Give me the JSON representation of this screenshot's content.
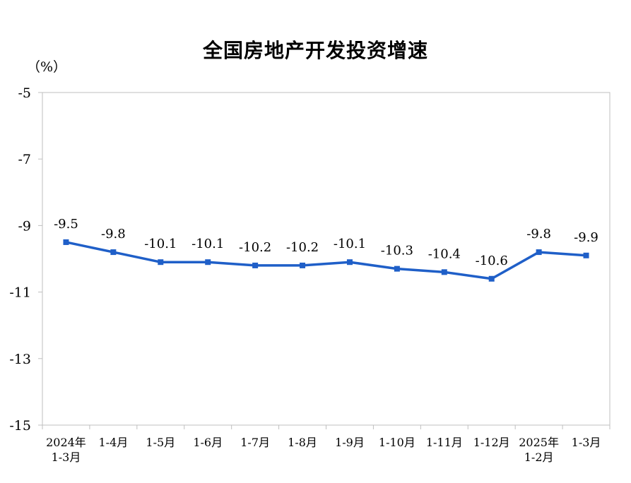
{
  "chart_data": {
    "type": "line",
    "title": "全国房地产开发投资增速",
    "unit_label": "（%）",
    "ylim": [
      -15,
      -5
    ],
    "yticks": [
      -5,
      -7,
      -9,
      -11,
      -13,
      -15
    ],
    "grid": false,
    "categories": [
      [
        "2024年",
        "1-3月"
      ],
      [
        "1-4月"
      ],
      [
        "1-5月"
      ],
      [
        "1-6月"
      ],
      [
        "1-7月"
      ],
      [
        "1-8月"
      ],
      [
        "1-9月"
      ],
      [
        "1-10月"
      ],
      [
        "1-11月"
      ],
      [
        "1-12月"
      ],
      [
        "2025年",
        "1-2月"
      ],
      [
        "1-3月"
      ]
    ],
    "series": [
      {
        "values": [
          -9.5,
          -9.8,
          -10.1,
          -10.1,
          -10.2,
          -10.2,
          -10.1,
          -10.3,
          -10.4,
          -10.6,
          -9.8,
          -9.9
        ]
      }
    ],
    "data_labels": [
      "-9.5",
      "-9.8",
      "-10.1",
      "-10.1",
      "-10.2",
      "-10.2",
      "-10.1",
      "-10.3",
      "-10.4",
      "-10.6",
      "-9.8",
      "-9.9"
    ],
    "colors": {
      "line": "#1f5fc8",
      "axis": "#bfbfbf"
    }
  }
}
